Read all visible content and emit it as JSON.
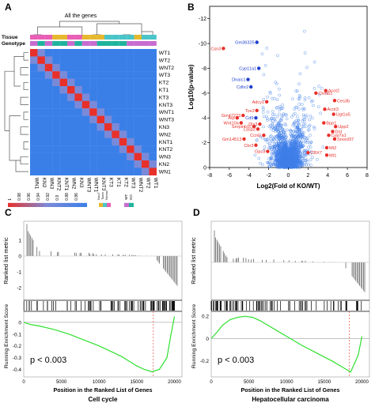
{
  "panel_labels": {
    "a": "A",
    "b": "B",
    "c": "C",
    "d": "D"
  },
  "chart_data": [
    {
      "type": "heatmap",
      "panel": "A",
      "title": "All the genes",
      "row_labels": [
        "WT1",
        "WT2",
        "WNT2",
        "WT3",
        "KT2",
        "KT1",
        "KT3",
        "KNT3",
        "WNT1",
        "WNT3",
        "KN3",
        "WN2",
        "KNT1",
        "KNT2",
        "WN3",
        "KN2",
        "WN1"
      ],
      "col_labels": [
        "WN1",
        "KN2",
        "WN3",
        "KNT2",
        "KNT1",
        "WN2",
        "KN3",
        "WNT3",
        "WNT1",
        "KNT3",
        "KT3",
        "KT1",
        "KT2",
        "WT3",
        "WNT2",
        "WT2",
        "WT1"
      ],
      "annotation_rows": [
        "Tissue",
        "Genotype"
      ],
      "tissue": [
        "N",
        "N",
        "N",
        "NT",
        "NT",
        "N",
        "N",
        "NT",
        "NT",
        "NT",
        "T",
        "T",
        "T",
        "T",
        "NT",
        "T",
        "T"
      ],
      "genotype": [
        "WT",
        "KO",
        "WT",
        "KO",
        "KO",
        "WT",
        "KO",
        "WT",
        "WT",
        "KO",
        "KO",
        "KO",
        "KO",
        "WT",
        "WT",
        "WT",
        "WT"
      ],
      "value_legend": {
        "title": "value",
        "ticks": [
          "1",
          "0.98",
          "0.96",
          "0.94",
          "0.92",
          "0.9",
          "0.88",
          "0.86"
        ]
      },
      "tissue_legend": {
        "title": "Tissue",
        "items": [
          "Non-T",
          "Tumor",
          "Normal"
        ]
      },
      "genotype_legend": {
        "title": "Genotype",
        "items": [
          "WT",
          "KO"
        ]
      },
      "colors": {
        "diag": "#e8302a",
        "high": "#e85a57",
        "mid": "#7a8ad8",
        "low": "#3a7fe8",
        "tissue_N": "#e85fb5",
        "tissue_NT": "#e6b82e",
        "tissue_T": "#49c4c9",
        "geno_WT": "#c86ccf",
        "geno_KO": "#1fb39c"
      }
    },
    {
      "type": "scatter",
      "panel": "B",
      "xlabel": "Log2(Fold of KO/WT)",
      "ylabel": "Log10(p-value)",
      "xlim": [
        -8,
        8
      ],
      "ylim": [
        0,
        -13
      ],
      "xticks": [
        "-8",
        "-6",
        "-4",
        "-2",
        "0",
        "2",
        "4",
        "6",
        "8"
      ],
      "yticks": [
        "0",
        "-2",
        "-4",
        "-6",
        "-8",
        "-10",
        "-12"
      ],
      "labeled_points": [
        {
          "label": "Csn3",
          "x": -6.6,
          "y": -9.6,
          "color": "red"
        },
        {
          "label": "Gm36325",
          "x": -3.2,
          "y": -10.1,
          "color": "blue"
        },
        {
          "label": "Cyp11a1",
          "x": -3.0,
          "y": -8.0,
          "color": "blue"
        },
        {
          "label": "Dnaic1",
          "x": -4.1,
          "y": -7.1,
          "color": "blue"
        },
        {
          "label": "Cdhr2",
          "x": -3.8,
          "y": -6.5,
          "color": "blue"
        },
        {
          "label": "Adcy1",
          "x": -2.2,
          "y": -5.3,
          "color": "red"
        },
        {
          "label": "Tox2",
          "x": -3.2,
          "y": -4.6,
          "color": "red"
        },
        {
          "label": "Gm47223",
          "x": -4.6,
          "y": -4.2,
          "color": "red"
        },
        {
          "label": "Atp",
          "x": -5.2,
          "y": -4.0,
          "color": "red"
        },
        {
          "label": "Cd9",
          "x": -3.3,
          "y": -4.0,
          "color": "blue"
        },
        {
          "label": "Wnt10a",
          "x": -4.8,
          "y": -3.6,
          "color": "red"
        },
        {
          "label": "Dlx3",
          "x": -2.9,
          "y": -3.5,
          "color": "red"
        },
        {
          "label": "Serpinb1c",
          "x": -3.5,
          "y": -3.3,
          "color": "red"
        },
        {
          "label": "Lasp2",
          "x": -3.1,
          "y": -3.1,
          "color": "red"
        },
        {
          "label": "Gm14513",
          "x": -4.5,
          "y": -2.3,
          "color": "red"
        },
        {
          "label": "Ccnl1",
          "x": -2.5,
          "y": -2.6,
          "color": "red"
        },
        {
          "label": "Cbr3",
          "x": -3.3,
          "y": -1.8,
          "color": "red"
        },
        {
          "label": "Gpc3",
          "x": -2.1,
          "y": -1.3,
          "color": "red"
        },
        {
          "label": "Chmb1",
          "x": 2.8,
          "y": -6.0,
          "color": "red"
        },
        {
          "label": "Acot2",
          "x": 3.8,
          "y": -6.2,
          "color": "red"
        },
        {
          "label": "Ces3b",
          "x": 4.7,
          "y": -5.4,
          "color": "red"
        },
        {
          "label": "Acot3",
          "x": 3.7,
          "y": -4.7,
          "color": "red"
        },
        {
          "label": "Ugt1a5",
          "x": 4.6,
          "y": -4.3,
          "color": "red"
        },
        {
          "label": "Bpp1",
          "x": 3.6,
          "y": -3.6,
          "color": "red"
        },
        {
          "label": "Upp2",
          "x": 4.8,
          "y": -3.3,
          "color": "red"
        },
        {
          "label": "Dnt",
          "x": 4.5,
          "y": -2.9,
          "color": "red"
        },
        {
          "label": "Cyp7a1",
          "x": 4.1,
          "y": -2.6,
          "color": "red"
        },
        {
          "label": "Snord37",
          "x": 4.7,
          "y": -2.3,
          "color": "red"
        },
        {
          "label": "Mt2",
          "x": 3.9,
          "y": -1.6,
          "color": "red"
        },
        {
          "label": "Mt1",
          "x": 3.9,
          "y": -1.0,
          "color": "red"
        },
        {
          "label": "CBX7",
          "x": 2.0,
          "y": -1.2,
          "color": "red"
        }
      ]
    },
    {
      "type": "line",
      "panel": "C",
      "xlabel": "Position in the Ranked List of Genes",
      "caption": "Cell cycle",
      "top_ylabel": "Ranked list metric",
      "top_yticks": [
        "1",
        "0",
        "-1",
        "-2"
      ],
      "bottom_ylabel": "Running Enrichment Score",
      "bottom_yticks": [
        "0",
        "-0.1",
        "-0.2",
        "-0.3",
        "-0.4"
      ],
      "xticks": [
        "0",
        "5000",
        "10000",
        "15000",
        "20000"
      ],
      "annotation": "p < 0.003",
      "es_curve": {
        "x": [
          0,
          1000,
          2000,
          4000,
          6000,
          8000,
          10000,
          11000,
          12000,
          13000,
          14000,
          15000,
          16000,
          17000,
          18000,
          19000,
          19500,
          20000
        ],
        "y": [
          0,
          -0.02,
          -0.03,
          -0.06,
          -0.1,
          -0.15,
          -0.2,
          -0.23,
          -0.26,
          -0.29,
          -0.33,
          -0.37,
          -0.4,
          -0.42,
          -0.4,
          -0.3,
          -0.12,
          0.05
        ]
      },
      "min_marker_x": 17200
    },
    {
      "type": "line",
      "panel": "D",
      "xlabel": "Position in the Ranked List of Genes",
      "caption": "Hepatocellular carcinoma",
      "top_ylabel": "Ranked list metric",
      "bottom_ylabel": "Running Enrichment Score",
      "bottom_yticks": [
        "0.2",
        "0",
        "-0.2"
      ],
      "xticks": [
        "0",
        "5000",
        "10000",
        "15000",
        "20000"
      ],
      "annotation": "p < 0.003",
      "es_curve": {
        "x": [
          0,
          800,
          1500,
          2500,
          3500,
          4500,
          5500,
          6500,
          7500,
          8500,
          10000,
          12000,
          14000,
          16000,
          17500,
          18500,
          19500,
          20000
        ],
        "y": [
          0,
          0.06,
          0.12,
          0.17,
          0.19,
          0.2,
          0.19,
          0.16,
          0.12,
          0.08,
          0.02,
          -0.06,
          -0.13,
          -0.2,
          -0.26,
          -0.3,
          -0.15,
          0.02
        ]
      },
      "min_marker_x": 18300
    }
  ]
}
